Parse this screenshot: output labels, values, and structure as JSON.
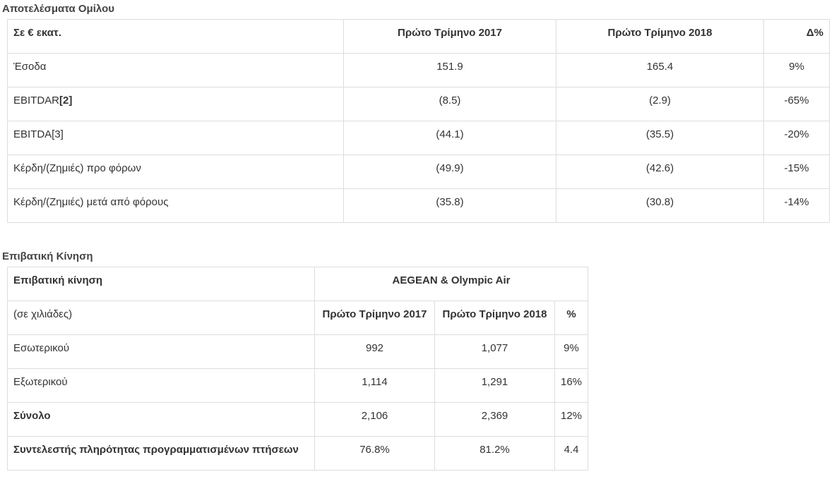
{
  "group_results": {
    "title": "Αποτελέσματα Ομίλου",
    "header": [
      "Σε € εκατ.",
      "Πρώτο Τρίμηνο 2017",
      "Πρώτο Τρίμηνο 2018",
      "Δ%"
    ],
    "rows": [
      {
        "label": "Έσοδα",
        "ref": "",
        "q1_2017": "151.9",
        "q1_2018": "165.4",
        "delta": "9%"
      },
      {
        "label": "EBITDAR",
        "ref": "[2]",
        "q1_2017": "(8.5)",
        "q1_2018": "(2.9)",
        "delta": "-65%"
      },
      {
        "label": "EBITDA[3]",
        "ref": "",
        "q1_2017": "(44.1)",
        "q1_2018": "(35.5)",
        "delta": "-20%"
      },
      {
        "label": "Κέρδη/(Ζημιές) προ φόρων",
        "ref": "",
        "q1_2017": "(49.9)",
        "q1_2018": "(42.6)",
        "delta": "-15%"
      },
      {
        "label": "Κέρδη/(Ζημιές) μετά από φόρους",
        "ref": "",
        "q1_2017": "(35.8)",
        "q1_2018": "(30.8)",
        "delta": "-14%"
      }
    ]
  },
  "passenger_traffic": {
    "title": "Επιβατική Κίνηση",
    "header_label": "Επιβατική κίνηση",
    "header_group": "AEGEAN & Olympic Air",
    "sub_label": "(σε χιλιάδες)",
    "sub_headers": [
      "Πρώτο Τρίμηνο 2017",
      "Πρώτο Τρίμηνο 2018",
      "%"
    ],
    "rows": [
      {
        "label": "Εσωτερικού",
        "q1_2017": "992",
        "q1_2018": "1,077",
        "pct": "9%"
      },
      {
        "label": "Εξωτερικού",
        "q1_2017": "1,114",
        "q1_2018": "1,291",
        "pct": "16%"
      },
      {
        "label": "Σύνολο",
        "q1_2017": "2,106",
        "q1_2018": "2,369",
        "pct": "12%"
      },
      {
        "label": "Συντελεστής πληρότητας προγραμματισμένων πτήσεων",
        "q1_2017": "76.8%",
        "q1_2018": "81.2%",
        "pct": "4.4"
      }
    ]
  }
}
